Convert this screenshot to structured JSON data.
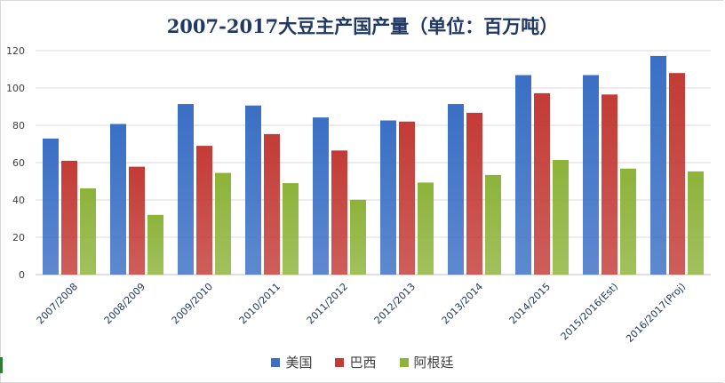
{
  "chart_data": {
    "type": "bar",
    "title": "2007-2017大豆主产国产量（单位：百万吨）",
    "categories": [
      "2007/2008",
      "2008/2009",
      "2009/2010",
      "2010/2011",
      "2011/2012",
      "2012/2013",
      "2013/2014",
      "2014/2015",
      "2015/2016(Est)",
      "2016/2017(Proj)"
    ],
    "series": [
      {
        "name": "美国",
        "color": "#3a6fc4",
        "values": [
          72.9,
          80.7,
          91.4,
          90.6,
          84.2,
          82.6,
          91.4,
          106.9,
          106.9,
          117.2
        ]
      },
      {
        "name": "巴西",
        "color": "#c33b36",
        "values": [
          61.0,
          57.8,
          69.0,
          75.3,
          66.5,
          82.0,
          86.7,
          97.2,
          96.5,
          108.0
        ]
      },
      {
        "name": "阿根廷",
        "color": "#8db33a",
        "values": [
          46.2,
          32.0,
          54.5,
          49.0,
          40.1,
          49.3,
          53.4,
          61.4,
          56.8,
          55.3
        ]
      }
    ],
    "yticks": [
      "0",
      "20",
      "40",
      "60",
      "80",
      "100",
      "120"
    ],
    "ylim": [
      0,
      120
    ],
    "grid": true,
    "legend_position": "bottom"
  }
}
